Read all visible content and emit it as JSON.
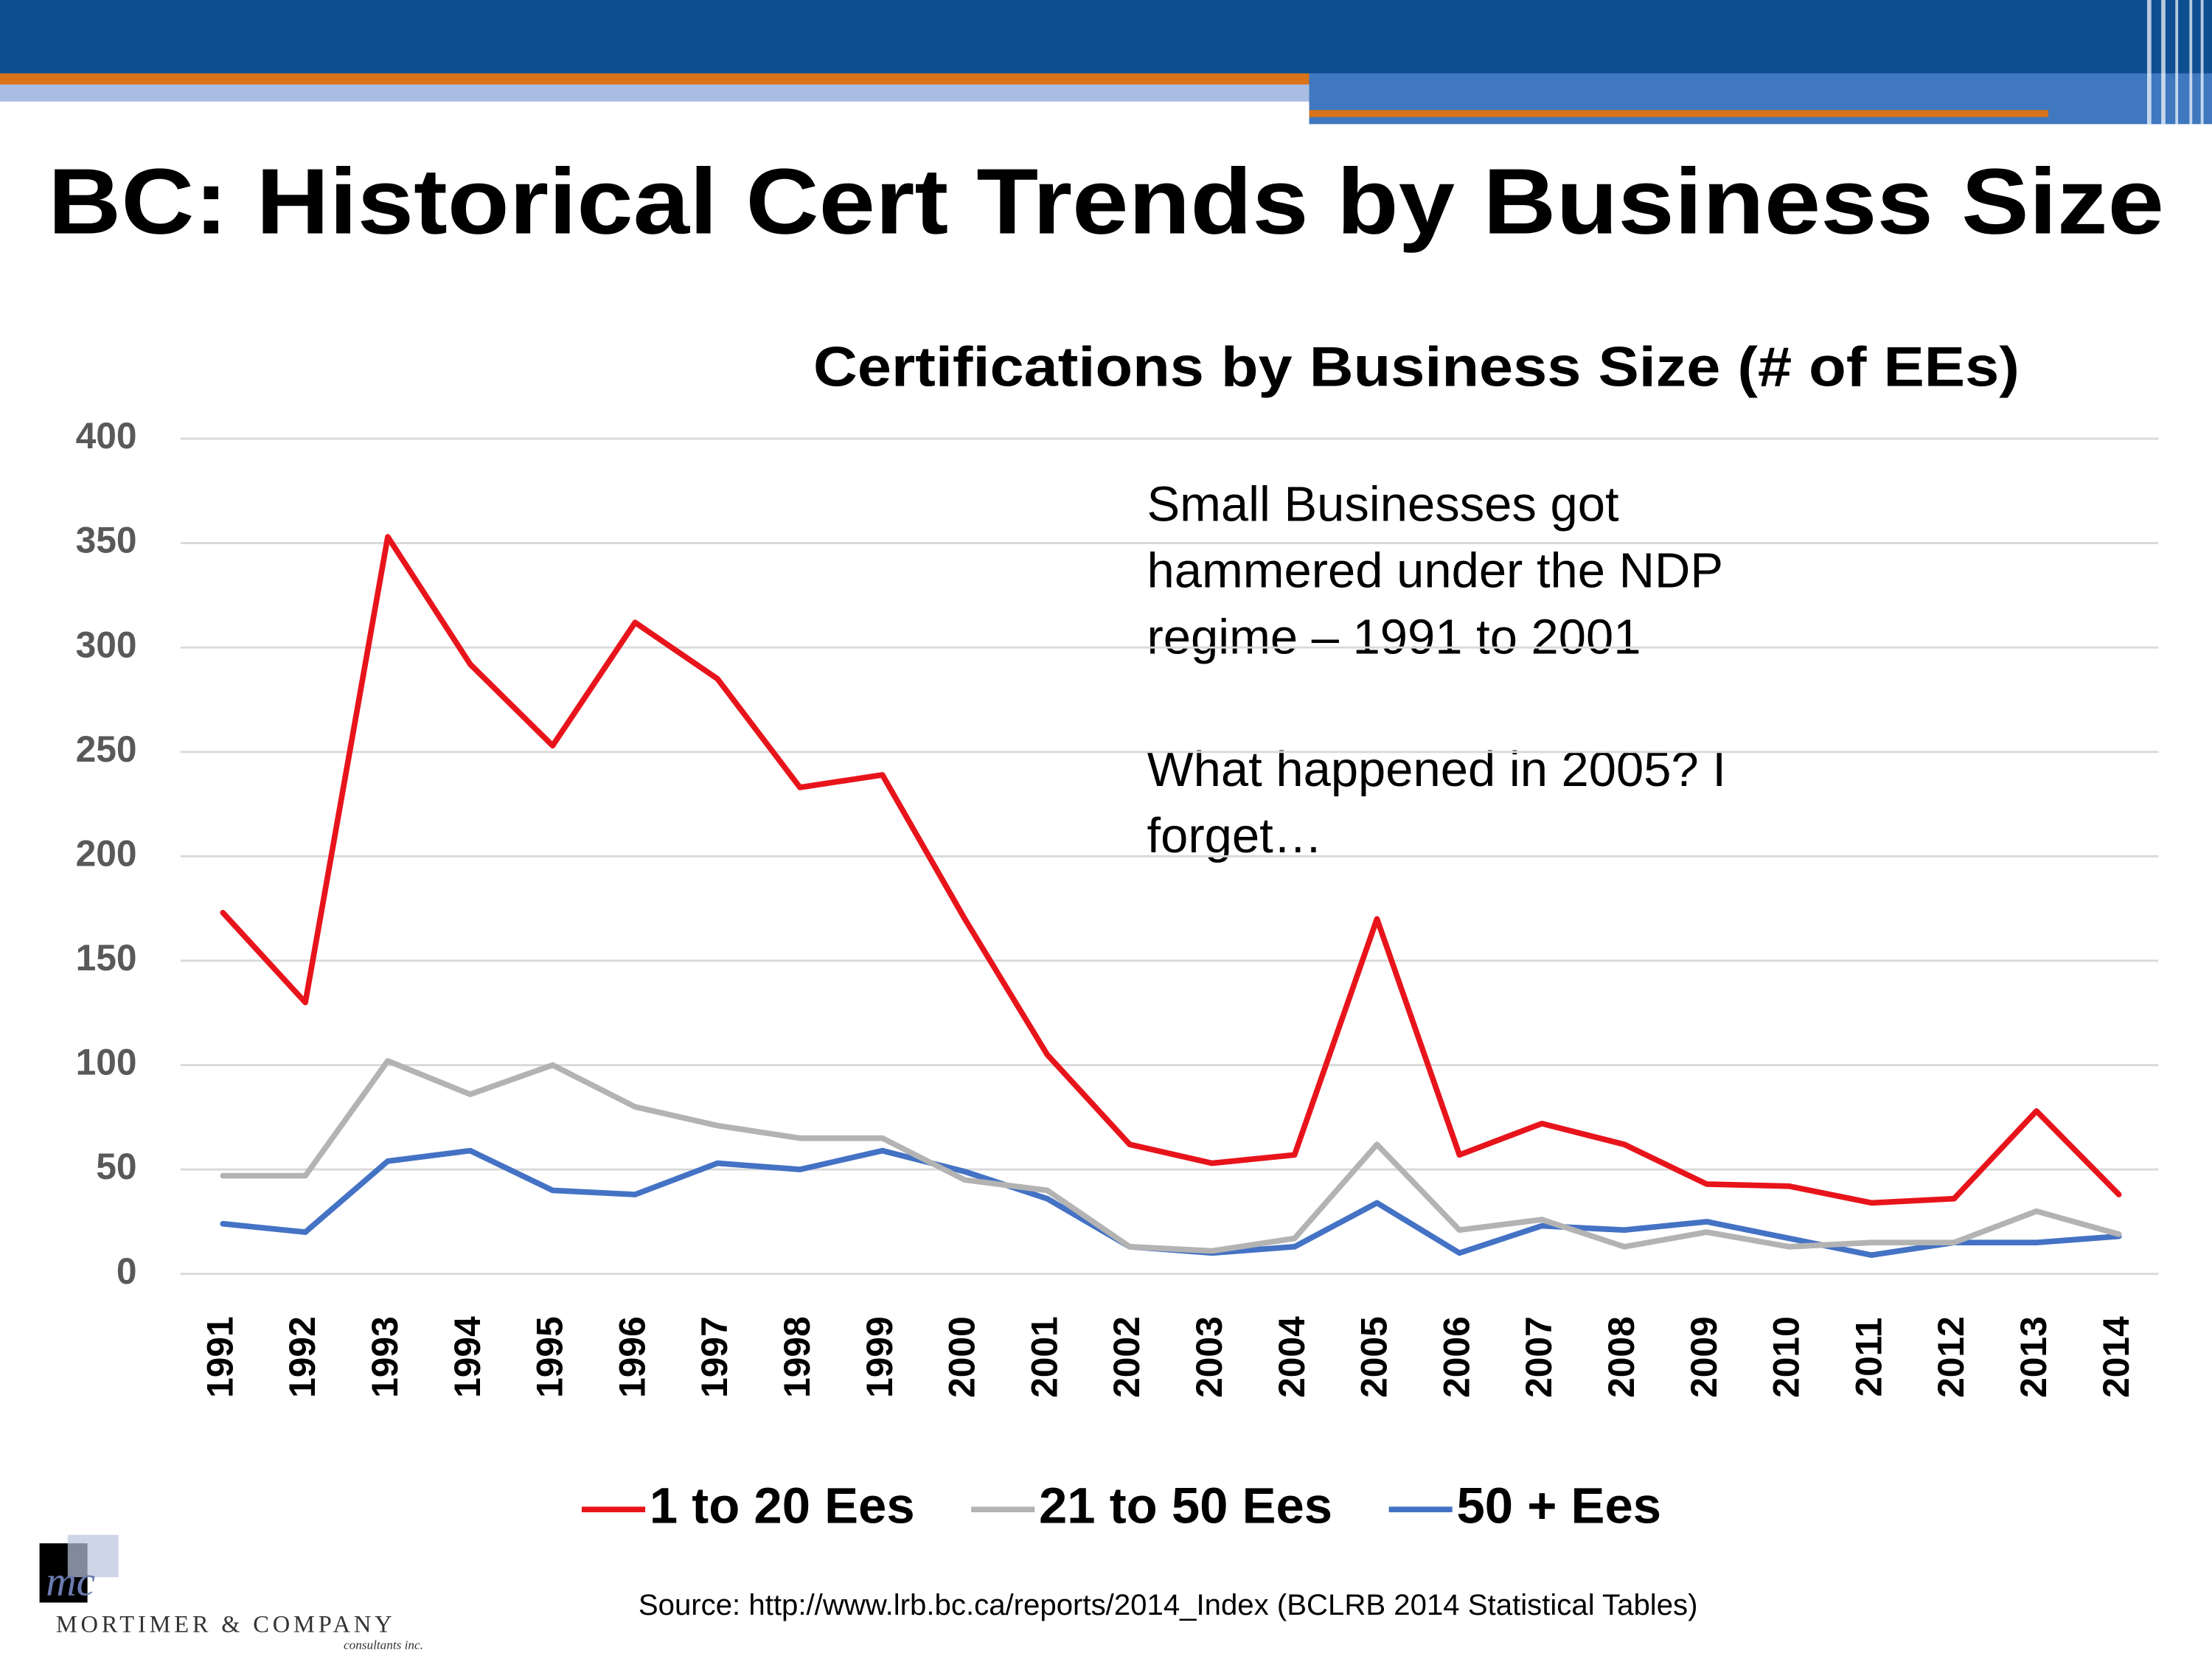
{
  "title": "BC: Historical Cert Trends by Business Size",
  "annotation": {
    "paragraphs": [
      [
        "Small Businesses got",
        "hammered under the NDP",
        "regime – 1991 to 2001"
      ],
      [
        "What happened in 2005? I",
        "forget…"
      ]
    ]
  },
  "source": "Source: http://www.lrb.bc.ca/reports/2014_Index (BCLRB 2014 Statistical Tables)",
  "logo": {
    "mark": "mc",
    "name": "Mortimer & Company",
    "tagline": "consultants inc."
  },
  "chart_data": {
    "type": "line",
    "title": "Certifications by Business Size (# of EEs)",
    "categories": [
      "1991",
      "1992",
      "1993",
      "1994",
      "1995",
      "1996",
      "1997",
      "1998",
      "1999",
      "2000",
      "2001",
      "2002",
      "2003",
      "2004",
      "2005",
      "2006",
      "2007",
      "2008",
      "2009",
      "2010",
      "2011",
      "2012",
      "2013",
      "2014"
    ],
    "series": [
      {
        "name": "1 to 20 Ees",
        "color": "#e8141b",
        "values": [
          173,
          130,
          353,
          292,
          253,
          312,
          285,
          233,
          239,
          170,
          105,
          62,
          53,
          57,
          170,
          57,
          72,
          62,
          43,
          42,
          34,
          36,
          78,
          38
        ]
      },
      {
        "name": "21 to 50 Ees",
        "color": "#b3b3b3",
        "values": [
          47,
          47,
          102,
          86,
          100,
          80,
          71,
          65,
          65,
          45,
          40,
          13,
          11,
          17,
          62,
          21,
          26,
          13,
          20,
          13,
          15,
          15,
          30,
          19
        ]
      },
      {
        "name": "50 + Ees",
        "color": "#4472c4",
        "values": [
          24,
          20,
          54,
          59,
          40,
          38,
          53,
          50,
          59,
          49,
          36,
          13,
          10,
          13,
          34,
          10,
          23,
          21,
          25,
          17,
          9,
          15,
          15,
          18
        ]
      }
    ],
    "ylim": [
      0,
      400
    ],
    "yticks": [
      0,
      50,
      100,
      150,
      200,
      250,
      300,
      350,
      400
    ],
    "grid": true,
    "legend": "bottom"
  }
}
